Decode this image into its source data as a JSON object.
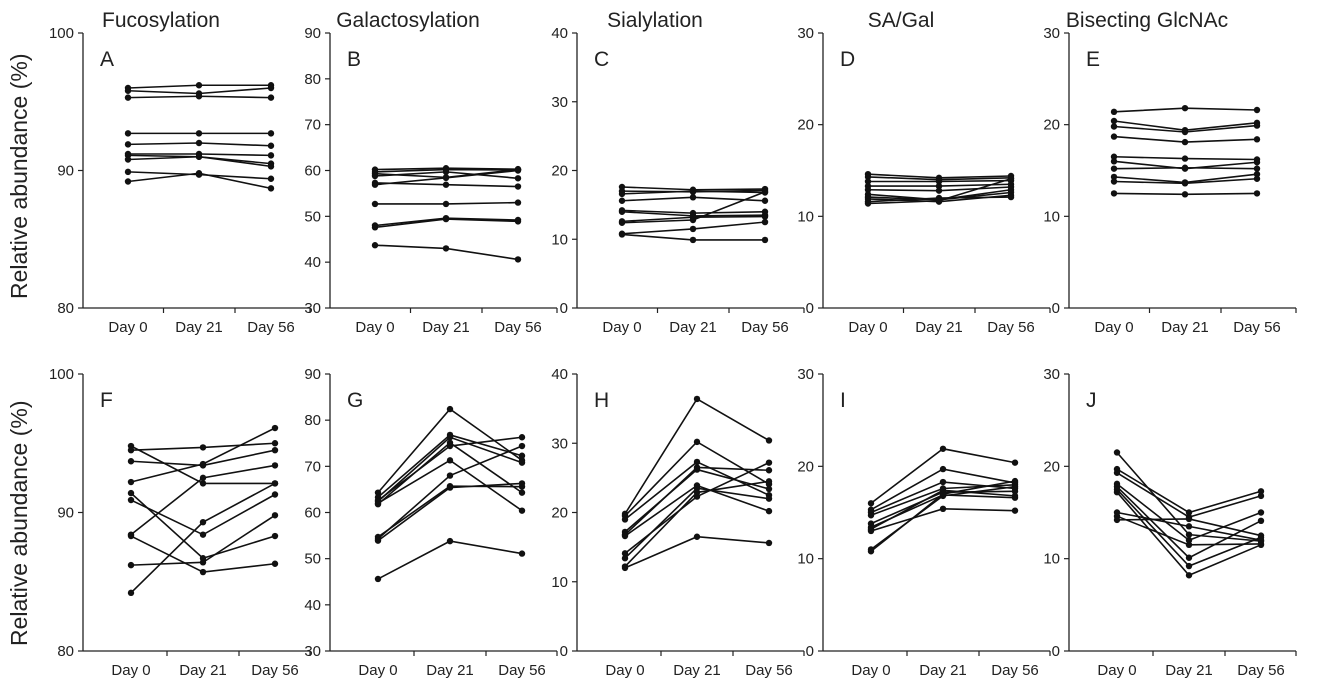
{
  "figure": {
    "ylabel": "Relative abundance (%)"
  },
  "chart_data": [
    {
      "type": "line",
      "panel": "A",
      "title": "Fucosylation",
      "x": [
        "Day 0",
        "Day 21",
        "Day 56"
      ],
      "ylim": [
        80,
        100
      ],
      "yticks": [
        80,
        90,
        100
      ],
      "grid": false,
      "series": [
        {
          "values": [
            96.0,
            96.2,
            96.2
          ]
        },
        {
          "values": [
            95.8,
            95.6,
            96.0
          ]
        },
        {
          "values": [
            95.3,
            95.4,
            95.3
          ]
        },
        {
          "values": [
            92.7,
            92.7,
            92.7
          ]
        },
        {
          "values": [
            91.9,
            92.0,
            91.8
          ]
        },
        {
          "values": [
            91.2,
            91.2,
            91.1
          ]
        },
        {
          "values": [
            91.1,
            91.0,
            90.5
          ]
        },
        {
          "values": [
            90.8,
            91.0,
            90.3
          ]
        },
        {
          "values": [
            89.9,
            89.7,
            89.4
          ]
        },
        {
          "values": [
            89.2,
            89.8,
            88.7
          ]
        }
      ]
    },
    {
      "type": "line",
      "panel": "B",
      "title": "Galactosylation",
      "x": [
        "Day 0",
        "Day 21",
        "Day 56"
      ],
      "ylim": [
        30,
        90
      ],
      "yticks": [
        30,
        40,
        50,
        60,
        70,
        80,
        90
      ],
      "grid": false,
      "series": [
        {
          "values": [
            60.2,
            60.5,
            60.3
          ]
        },
        {
          "values": [
            59.7,
            60.2,
            60.1
          ]
        },
        {
          "values": [
            59.3,
            58.5,
            60.2
          ]
        },
        {
          "values": [
            58.8,
            59.7,
            58.3
          ]
        },
        {
          "values": [
            57.3,
            56.9,
            56.5
          ]
        },
        {
          "values": [
            56.9,
            58.4,
            60.0
          ]
        },
        {
          "values": [
            52.7,
            52.7,
            53.0
          ]
        },
        {
          "values": [
            48.0,
            49.6,
            49.2
          ]
        },
        {
          "values": [
            47.6,
            49.4,
            48.9
          ]
        },
        {
          "values": [
            43.7,
            43.0,
            40.6
          ]
        }
      ]
    },
    {
      "type": "line",
      "panel": "C",
      "title": "Sialylation",
      "x": [
        "Day 0",
        "Day 21",
        "Day 56"
      ],
      "ylim": [
        0,
        40
      ],
      "yticks": [
        0,
        10,
        20,
        30,
        40
      ],
      "grid": false,
      "series": [
        {
          "values": [
            17.6,
            17.2,
            17.3
          ]
        },
        {
          "values": [
            17.0,
            16.9,
            17.1
          ]
        },
        {
          "values": [
            16.6,
            17.0,
            16.8
          ]
        },
        {
          "values": [
            15.6,
            16.1,
            15.6
          ]
        },
        {
          "values": [
            14.2,
            13.8,
            14.0
          ]
        },
        {
          "values": [
            14.0,
            13.4,
            13.5
          ]
        },
        {
          "values": [
            12.6,
            13.2,
            13.3
          ]
        },
        {
          "values": [
            12.4,
            12.8,
            16.9
          ]
        },
        {
          "values": [
            10.8,
            11.5,
            12.5
          ]
        },
        {
          "values": [
            10.7,
            9.9,
            9.9
          ]
        }
      ]
    },
    {
      "type": "line",
      "panel": "D",
      "title": "SA/Gal",
      "x": [
        "Day 0",
        "Day 21",
        "Day 56"
      ],
      "ylim": [
        0,
        30
      ],
      "yticks": [
        0,
        10,
        20,
        30
      ],
      "grid": false,
      "series": [
        {
          "values": [
            14.6,
            14.2,
            14.4
          ]
        },
        {
          "values": [
            14.3,
            14.0,
            14.2
          ]
        },
        {
          "values": [
            13.8,
            13.8,
            13.9
          ]
        },
        {
          "values": [
            13.3,
            13.3,
            13.5
          ]
        },
        {
          "values": [
            12.9,
            12.8,
            13.2
          ]
        },
        {
          "values": [
            12.4,
            11.8,
            12.9
          ]
        },
        {
          "values": [
            12.1,
            11.8,
            12.6
          ]
        },
        {
          "values": [
            11.9,
            11.6,
            12.3
          ]
        },
        {
          "values": [
            11.6,
            12.0,
            12.1
          ]
        },
        {
          "values": [
            11.4,
            11.7,
            14.1
          ]
        }
      ]
    },
    {
      "type": "line",
      "panel": "E",
      "title": "Bisecting GlcNAc",
      "x": [
        "Day 0",
        "Day 21",
        "Day 56"
      ],
      "ylim": [
        0,
        30
      ],
      "yticks": [
        0,
        10,
        20,
        30
      ],
      "grid": false,
      "series": [
        {
          "values": [
            21.4,
            21.8,
            21.6
          ]
        },
        {
          "values": [
            20.4,
            19.4,
            20.2
          ]
        },
        {
          "values": [
            19.8,
            19.2,
            19.9
          ]
        },
        {
          "values": [
            18.7,
            18.1,
            18.4
          ]
        },
        {
          "values": [
            16.5,
            16.3,
            16.2
          ]
        },
        {
          "values": [
            16.0,
            15.2,
            15.9
          ]
        },
        {
          "values": [
            15.2,
            15.3,
            15.2
          ]
        },
        {
          "values": [
            14.3,
            13.7,
            14.6
          ]
        },
        {
          "values": [
            13.8,
            13.6,
            14.1
          ]
        },
        {
          "values": [
            12.5,
            12.4,
            12.5
          ]
        }
      ]
    },
    {
      "type": "line",
      "panel": "F",
      "title": "",
      "x": [
        "Day 0",
        "Day 21",
        "Day 56"
      ],
      "ylim": [
        80,
        100
      ],
      "yticks": [
        80,
        90,
        100
      ],
      "grid": false,
      "series": [
        {
          "values": [
            94.8,
            92.1,
            92.1
          ]
        },
        {
          "values": [
            94.5,
            94.7,
            95.0
          ]
        },
        {
          "values": [
            93.7,
            93.4,
            94.5
          ]
        },
        {
          "values": [
            92.2,
            93.5,
            96.1
          ]
        },
        {
          "values": [
            91.4,
            86.7,
            88.3
          ]
        },
        {
          "values": [
            90.9,
            88.4,
            91.3
          ]
        },
        {
          "values": [
            88.4,
            92.5,
            93.4
          ]
        },
        {
          "values": [
            88.3,
            85.7,
            86.3
          ]
        },
        {
          "values": [
            86.2,
            86.4,
            89.8
          ]
        },
        {
          "values": [
            84.2,
            89.3,
            92.1
          ]
        }
      ]
    },
    {
      "type": "line",
      "panel": "G",
      "title": "",
      "x": [
        "Day 0",
        "Day 21",
        "Day 56"
      ],
      "ylim": [
        30,
        90
      ],
      "yticks": [
        30,
        40,
        50,
        60,
        70,
        80,
        90
      ],
      "grid": false,
      "series": [
        {
          "values": [
            64.3,
            82.4,
            71.3
          ]
        },
        {
          "values": [
            63.3,
            76.8,
            72.3
          ]
        },
        {
          "values": [
            62.6,
            74.4,
            76.3
          ]
        },
        {
          "values": [
            62.0,
            71.3,
            60.4
          ]
        },
        {
          "values": [
            62.4,
            76.3,
            70.8
          ]
        },
        {
          "values": [
            61.8,
            75.1,
            64.3
          ]
        },
        {
          "values": [
            54.7,
            65.7,
            65.6
          ]
        },
        {
          "values": [
            54.3,
            68.0,
            74.4
          ]
        },
        {
          "values": [
            53.9,
            65.4,
            66.3
          ]
        },
        {
          "values": [
            45.6,
            53.8,
            51.1
          ]
        }
      ]
    },
    {
      "type": "line",
      "panel": "H",
      "title": "",
      "x": [
        "Day 0",
        "Day 21",
        "Day 56"
      ],
      "ylim": [
        0,
        40
      ],
      "yticks": [
        0,
        10,
        20,
        30,
        40
      ],
      "grid": false,
      "series": [
        {
          "values": [
            19.8,
            36.4,
            30.4
          ]
        },
        {
          "values": [
            19.5,
            30.2,
            24.1
          ]
        },
        {
          "values": [
            19.0,
            27.3,
            22.5
          ]
        },
        {
          "values": [
            17.2,
            26.2,
            23.4
          ]
        },
        {
          "values": [
            16.8,
            26.5,
            26.1
          ]
        },
        {
          "values": [
            16.6,
            23.9,
            20.2
          ]
        },
        {
          "values": [
            14.1,
            22.3,
            27.2
          ]
        },
        {
          "values": [
            13.4,
            23.5,
            22.0
          ]
        },
        {
          "values": [
            12.2,
            22.9,
            24.5
          ]
        },
        {
          "values": [
            12.0,
            16.5,
            15.6
          ]
        }
      ]
    },
    {
      "type": "line",
      "panel": "I",
      "title": "",
      "x": [
        "Day 0",
        "Day 21",
        "Day 56"
      ],
      "ylim": [
        0,
        30
      ],
      "yticks": [
        0,
        10,
        20,
        30
      ],
      "grid": false,
      "series": [
        {
          "values": [
            16.0,
            21.9,
            20.4
          ]
        },
        {
          "values": [
            15.3,
            19.7,
            18.2
          ]
        },
        {
          "values": [
            15.0,
            18.3,
            17.6
          ]
        },
        {
          "values": [
            14.7,
            17.6,
            18.0
          ]
        },
        {
          "values": [
            13.8,
            17.2,
            17.3
          ]
        },
        {
          "values": [
            13.4,
            16.9,
            16.6
          ]
        },
        {
          "values": [
            13.2,
            17.4,
            16.8
          ]
        },
        {
          "values": [
            13.0,
            15.4,
            15.2
          ]
        },
        {
          "values": [
            11.0,
            16.8,
            17.8
          ]
        },
        {
          "values": [
            10.8,
            17.0,
            18.4
          ]
        }
      ]
    },
    {
      "type": "line",
      "panel": "J",
      "title": "",
      "x": [
        "Day 0",
        "Day 21",
        "Day 56"
      ],
      "ylim": [
        0,
        30
      ],
      "yticks": [
        0,
        10,
        20,
        30
      ],
      "grid": false,
      "series": [
        {
          "values": [
            21.5,
            12.6,
            11.9
          ]
        },
        {
          "values": [
            19.7,
            15.0,
            17.3
          ]
        },
        {
          "values": [
            19.3,
            14.5,
            16.8
          ]
        },
        {
          "values": [
            18.1,
            12.0,
            15.0
          ]
        },
        {
          "values": [
            17.8,
            10.1,
            14.1
          ]
        },
        {
          "values": [
            17.5,
            9.2,
            12.3
          ]
        },
        {
          "values": [
            17.2,
            8.2,
            11.5
          ]
        },
        {
          "values": [
            15.0,
            13.5,
            12.0
          ]
        },
        {
          "values": [
            14.6,
            11.5,
            11.6
          ]
        },
        {
          "values": [
            14.2,
            14.3,
            12.5
          ]
        }
      ]
    }
  ]
}
